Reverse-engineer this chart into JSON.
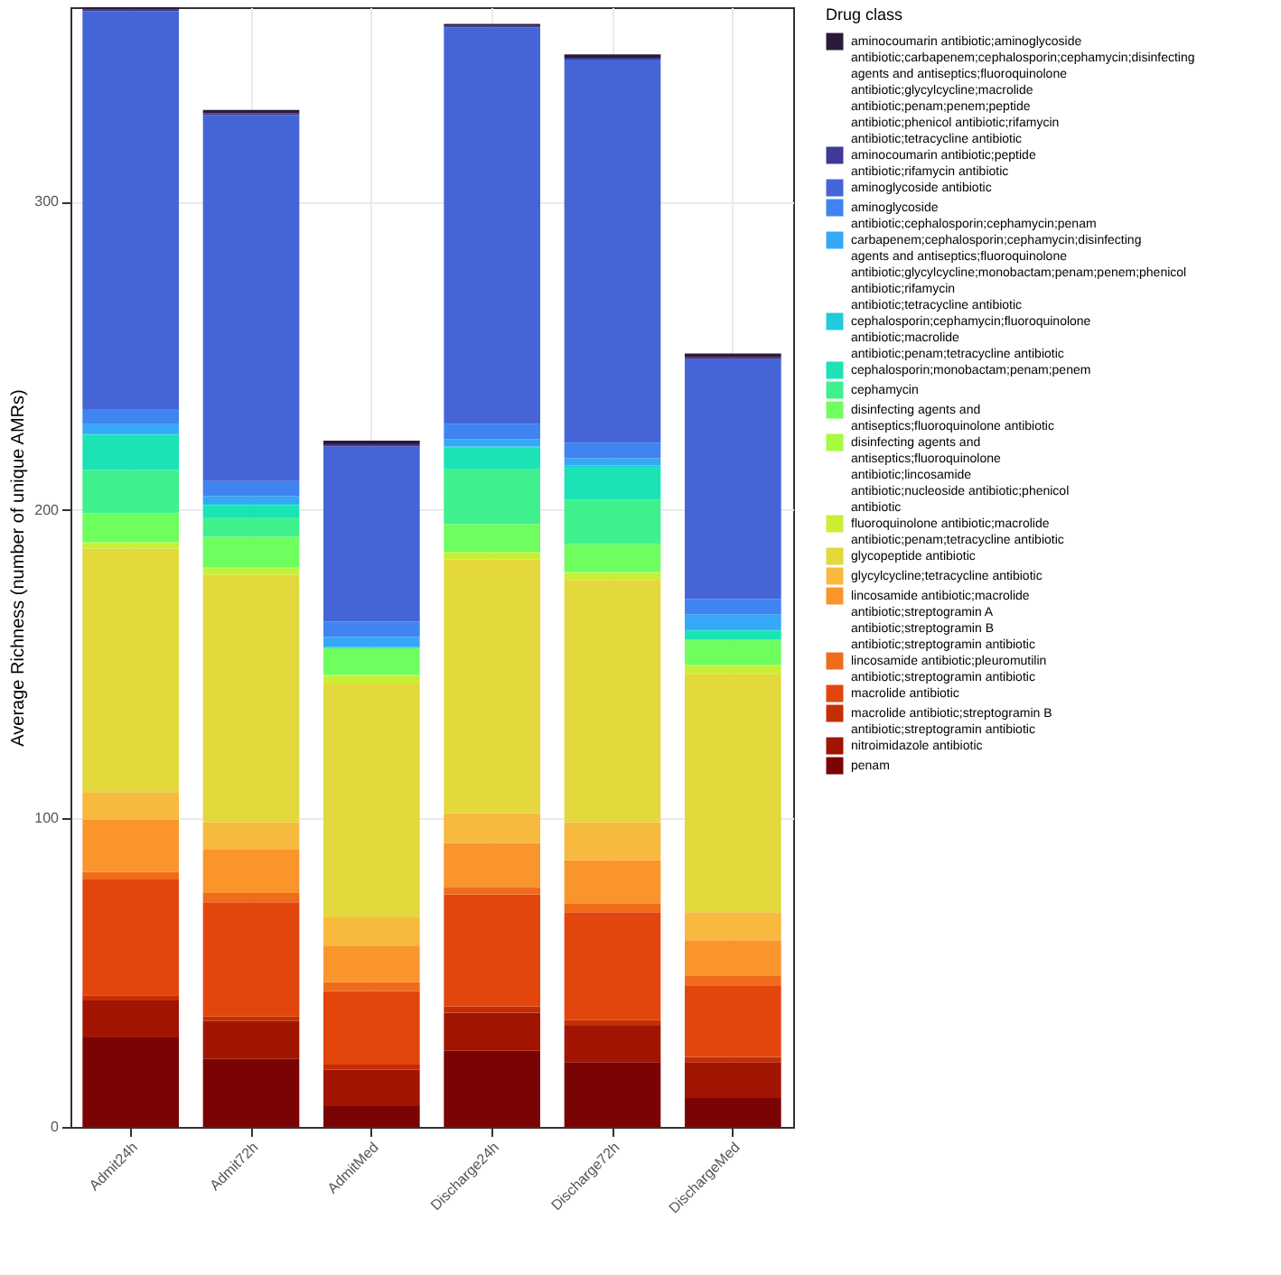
{
  "chart_data": {
    "type": "bar",
    "stacked": true,
    "ylabel": "Average Richness (number of unique AMRs)",
    "legend_title": "Drug class",
    "legend": "right",
    "grid": true,
    "categories": [
      "Admit24h",
      "Admit72h",
      "AdmitMed",
      "Discharge24h",
      "Discharge72h",
      "DischargeMed"
    ],
    "ylim": [
      0,
      363
    ],
    "yticks": [
      0,
      100,
      200,
      300
    ],
    "series": [
      {
        "name": "penam",
        "color": "#7a0403",
        "values": [
          29,
          22,
          6.7,
          24.7,
          21,
          9.4
        ]
      },
      {
        "name": "nitroimidazole antibiotic",
        "color": "#a11402",
        "values": [
          12,
          12.3,
          11.8,
          12.3,
          11.8,
          11.6
        ]
      },
      {
        "name": "macrolide antibiotic;streptogramin B antibiotic;streptogramin antibiotic",
        "color": "#c52e04",
        "values": [
          1.7,
          1.5,
          1.7,
          2,
          1.8,
          1.7
        ]
      },
      {
        "name": "macrolide antibiotic",
        "color": "#e2460c",
        "values": [
          37.5,
          37,
          23.8,
          36.3,
          35,
          23
        ]
      },
      {
        "name": "lincosamide antibiotic;pleuromutilin antibiotic;streptogramin antibiotic",
        "color": "#f06c1b",
        "values": [
          2.5,
          3,
          2.9,
          2.5,
          2.7,
          3.2
        ]
      },
      {
        "name": "lincosamide antibiotic;macrolide antibiotic;streptogramin A antibiotic;streptogramin B antibiotic;streptogramin antibiotic",
        "color": "#fa952c",
        "values": [
          17,
          14.1,
          11.9,
          14.3,
          14.1,
          11.6
        ]
      },
      {
        "name": "glycylcycline;tetracycline antibiotic",
        "color": "#f7b93e",
        "values": [
          8.8,
          8.9,
          9.1,
          9.6,
          12.4,
          9.1
        ]
      },
      {
        "name": "glycopeptide antibiotic",
        "color": "#e3d83c",
        "values": [
          79,
          80.2,
          75.8,
          82.3,
          78.5,
          77.3
        ]
      },
      {
        "name": "fluoroquinolone antibiotic;macrolide antibiotic;penam;tetracycline antibiotic",
        "color": "#c9ef34",
        "values": [
          1.7,
          2,
          2.5,
          2,
          2.2,
          2.5
        ]
      },
      {
        "name": "disinfecting agents and antiseptics;fluoroquinolone antibiotic;lincosamide antibiotic;nucleoside antibiotic;phenicol antibiotic",
        "color": "#a4fc3c",
        "values": [
          0.4,
          0.4,
          0.4,
          0.4,
          0.4,
          0.4
        ]
      },
      {
        "name": "disinfecting agents and antiseptics;fluoroquinolone antibiotic",
        "color": "#6efe5e",
        "values": [
          9.4,
          9.9,
          8.6,
          9,
          9.1,
          8.1
        ]
      },
      {
        "name": "cephamycin",
        "color": "#3ef18c",
        "values": [
          14,
          6.1,
          0,
          17.8,
          14.4,
          0
        ]
      },
      {
        "name": "cephalosporin;monobactam;penam;penem",
        "color": "#1be3b5",
        "values": [
          11.4,
          4.2,
          0,
          7,
          10.6,
          3
        ]
      },
      {
        "name": "cephalosporin;cephamycin;fluoroquinolone antibiotic;macrolide antibiotic;penam;tetracycline antibiotic",
        "color": "#1fcbdc",
        "values": [
          0.4,
          0.4,
          0.4,
          0.4,
          0.4,
          0.4
        ]
      },
      {
        "name": "carbapenem;cephalosporin;cephamycin;disinfecting agents and antiseptics;fluoroquinolone antibiotic;glycylcycline;monobactam;penam;penem;phenicol antibiotic;rifamycin antibiotic;tetracycline antibiotic",
        "color": "#35a8f7",
        "values": [
          3,
          2.5,
          3.2,
          2.4,
          2.4,
          4.9
        ]
      },
      {
        "name": "aminoglycoside antibiotic;cephalosporin;cephamycin;penam",
        "color": "#3f84f0",
        "values": [
          4.9,
          4.9,
          5,
          5,
          5,
          5
        ]
      },
      {
        "name": "aminoglycoside antibiotic",
        "color": "#4565d6",
        "values": [
          129,
          118.6,
          56.8,
          128.4,
          124.2,
          77.7
        ]
      },
      {
        "name": "aminocoumarin antibiotic;peptide antibiotic;rifamycin antibiotic",
        "color": "#3e3a96",
        "values": [
          0.5,
          0.6,
          0.7,
          0.5,
          0.6,
          0.6
        ]
      },
      {
        "name": "aminocoumarin antibiotic;aminoglycoside antibiotic;carbapenem;cephalosporin;cephamycin;disinfecting agents and antiseptics;fluoroquinolone antibiotic;glycylcycline;macrolide antibiotic;penam;penem;peptide antibiotic;phenicol antibiotic;rifamycin antibiotic;tetracycline antibiotic",
        "color": "#2d1a3a",
        "values": [
          1,
          1.1,
          1.2,
          0.7,
          1.1,
          1.2
        ]
      }
    ]
  }
}
